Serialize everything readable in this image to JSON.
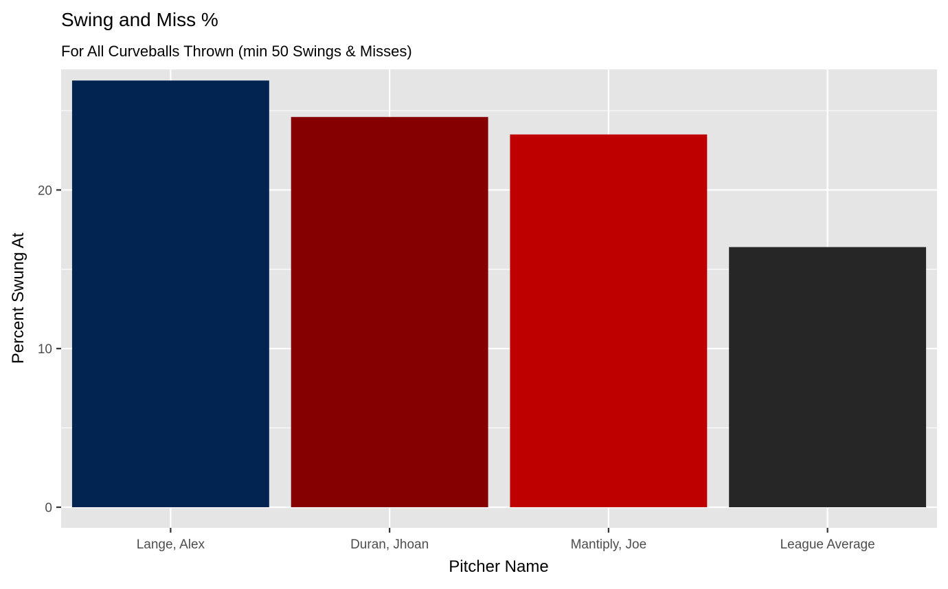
{
  "chart_data": {
    "type": "bar",
    "title": "Swing and Miss %",
    "subtitle": "For All Curveballs Thrown (min 50 Swings & Misses)",
    "xlabel": "Pitcher Name",
    "ylabel": "Percent Swung At",
    "categories": [
      "Lange, Alex",
      "Duran, Jhoan",
      "Mantiply, Joe",
      "League Average"
    ],
    "values": [
      26.9,
      24.6,
      23.5,
      16.4
    ],
    "colors": [
      "#022451",
      "#850000",
      "#be0000",
      "#262626"
    ],
    "ylim": [
      -1.3,
      27.6
    ],
    "yticks": [
      0,
      10,
      20
    ],
    "yticks_labels": [
      "0",
      "10",
      "20"
    ],
    "grid": true,
    "panel_background": "#e5e5e5",
    "legend": "none"
  }
}
